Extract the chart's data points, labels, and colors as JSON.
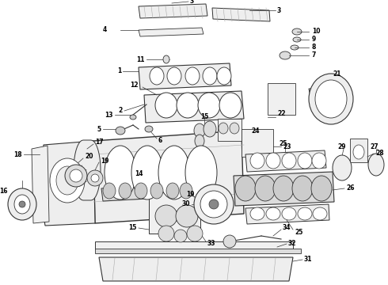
{
  "bg_color": "#ffffff",
  "lc": "#333333",
  "gray": "#777777",
  "lgray": "#aaaaaa",
  "fig_width": 4.9,
  "fig_height": 3.6,
  "dpi": 100
}
